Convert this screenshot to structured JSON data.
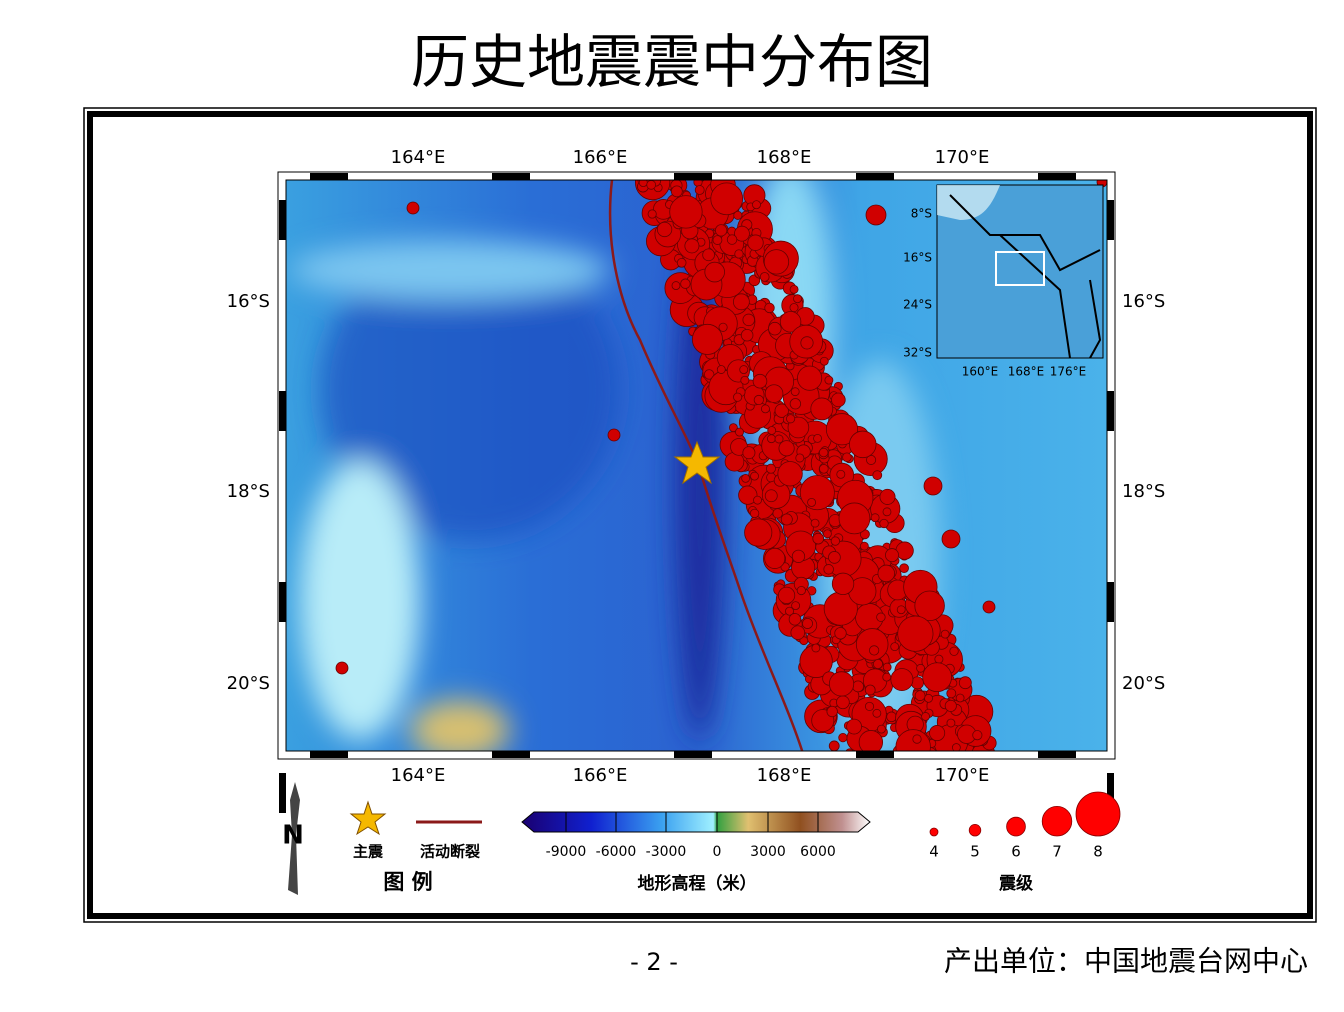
{
  "title": "历史地震震中分布图",
  "map": {
    "x_labels": [
      "164°E",
      "166°E",
      "168°E",
      "170°E"
    ],
    "y_labels": [
      "16°S",
      "18°S",
      "20°S"
    ],
    "inset": {
      "x_labels": [
        "160°E",
        "168°E",
        "176°E"
      ],
      "y_labels": [
        "8°S",
        "16°S",
        "24°S",
        "32°S"
      ]
    }
  },
  "legend": {
    "compass": "N",
    "mainshock": "主震",
    "fault": "活动断裂",
    "title": "图 例",
    "elevation": {
      "ticks": [
        -9000,
        -6000,
        -3000,
        0,
        3000,
        6000
      ],
      "label": "地形高程（米）"
    },
    "magnitude": {
      "values": [
        4,
        5,
        6,
        7,
        8
      ],
      "label": "震级"
    }
  },
  "footer": {
    "page": "- 2 -",
    "source": "产出单位：中国地震台网中心"
  }
}
